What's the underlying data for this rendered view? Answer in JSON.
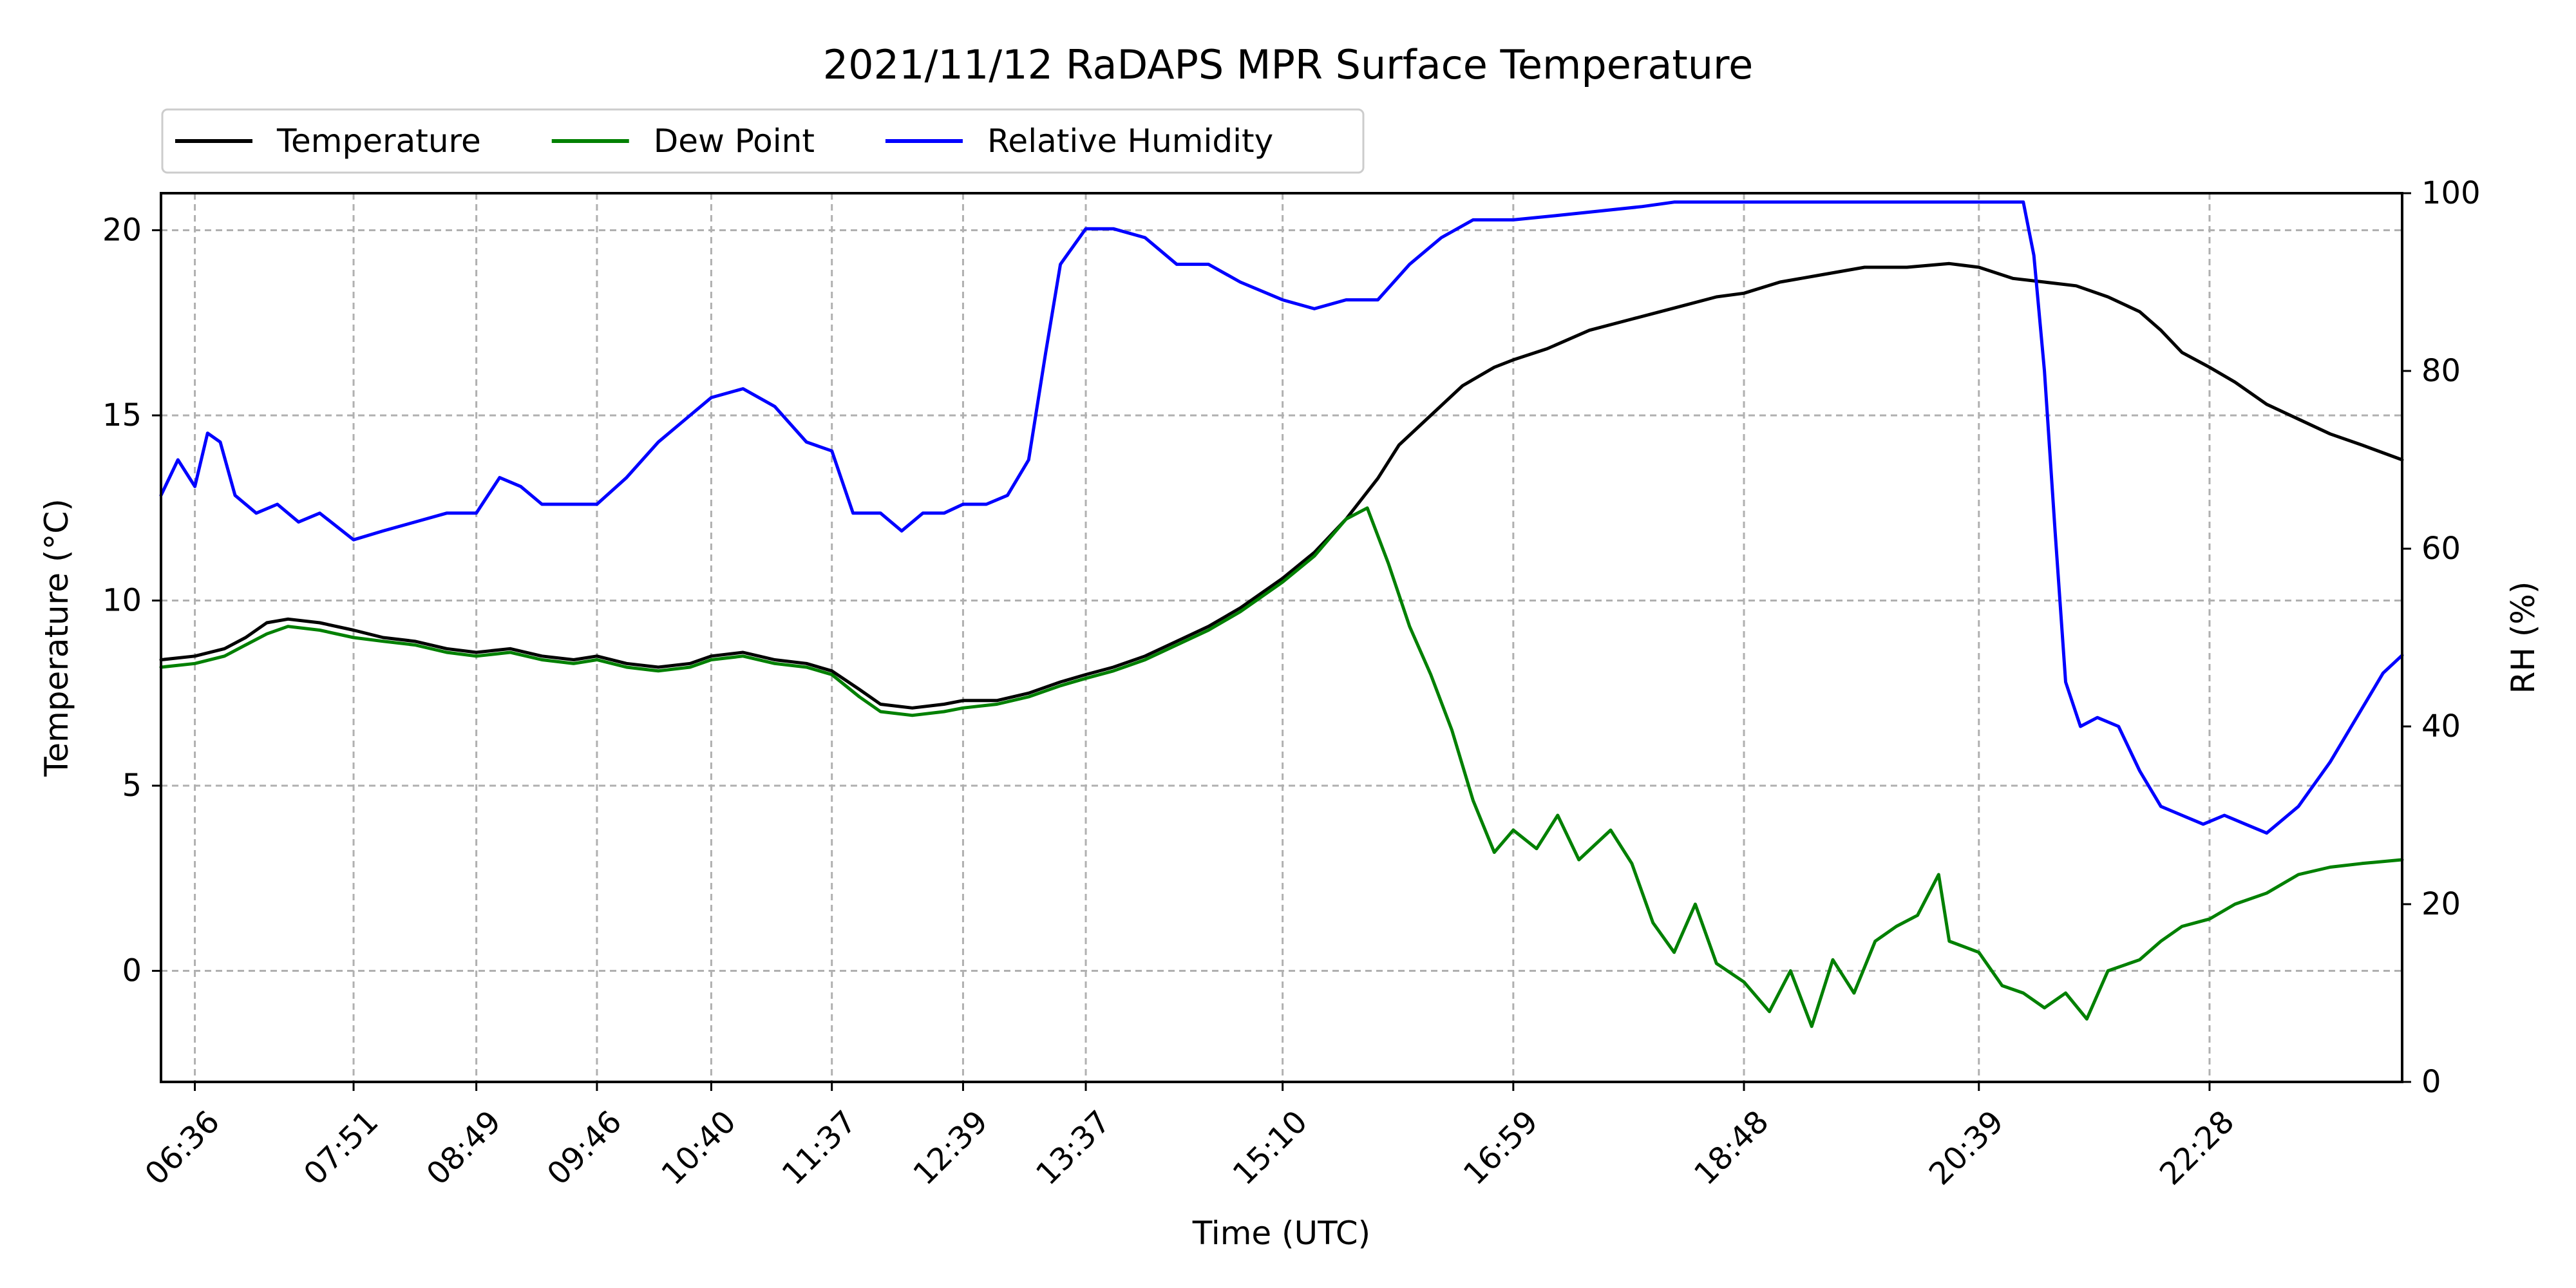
{
  "chart_data": {
    "type": "line",
    "title": "2021/11/12 RaDAPS MPR Surface Temperature",
    "xlabel": "Time (UTC)",
    "ylabel_left": "Temperature ($^\\circ$C)",
    "ylabel_left_display": "Temperature (°C)",
    "ylabel_right": "RH (%)",
    "xlim": [
      "06:20",
      "23:59"
    ],
    "ylim_left": [
      -3,
      21
    ],
    "ylim_right": [
      0,
      100
    ],
    "grid": true,
    "legend_position": "top-left, above plot",
    "x_ticks": [
      "06:36",
      "07:51",
      "08:49",
      "09:46",
      "10:40",
      "11:37",
      "12:39",
      "13:37",
      "15:10",
      "16:59",
      "18:48",
      "20:39",
      "22:28"
    ],
    "y_ticks_left": [
      0,
      5,
      10,
      15,
      20
    ],
    "y_ticks_right": [
      0,
      20,
      40,
      60,
      80,
      100
    ],
    "series": [
      {
        "name": "Temperature",
        "axis": "left",
        "color": "#000000",
        "points": [
          [
            "06:20",
            8.4
          ],
          [
            "06:36",
            8.5
          ],
          [
            "06:50",
            8.7
          ],
          [
            "07:00",
            9.0
          ],
          [
            "07:10",
            9.4
          ],
          [
            "07:20",
            9.5
          ],
          [
            "07:35",
            9.4
          ],
          [
            "07:51",
            9.2
          ],
          [
            "08:05",
            9.0
          ],
          [
            "08:20",
            8.9
          ],
          [
            "08:35",
            8.7
          ],
          [
            "08:49",
            8.6
          ],
          [
            "09:05",
            8.7
          ],
          [
            "09:20",
            8.5
          ],
          [
            "09:35",
            8.4
          ],
          [
            "09:46",
            8.5
          ],
          [
            "10:00",
            8.3
          ],
          [
            "10:15",
            8.2
          ],
          [
            "10:30",
            8.3
          ],
          [
            "10:40",
            8.5
          ],
          [
            "10:55",
            8.6
          ],
          [
            "11:10",
            8.4
          ],
          [
            "11:25",
            8.3
          ],
          [
            "11:37",
            8.1
          ],
          [
            "11:50",
            7.6
          ],
          [
            "12:00",
            7.2
          ],
          [
            "12:15",
            7.1
          ],
          [
            "12:30",
            7.2
          ],
          [
            "12:39",
            7.3
          ],
          [
            "12:55",
            7.3
          ],
          [
            "13:10",
            7.5
          ],
          [
            "13:25",
            7.8
          ],
          [
            "13:37",
            8.0
          ],
          [
            "13:50",
            8.2
          ],
          [
            "14:05",
            8.5
          ],
          [
            "14:20",
            8.9
          ],
          [
            "14:35",
            9.3
          ],
          [
            "14:50",
            9.8
          ],
          [
            "15:10",
            10.6
          ],
          [
            "15:25",
            11.3
          ],
          [
            "15:40",
            12.2
          ],
          [
            "15:55",
            13.3
          ],
          [
            "16:05",
            14.2
          ],
          [
            "16:20",
            15.0
          ],
          [
            "16:35",
            15.8
          ],
          [
            "16:50",
            16.3
          ],
          [
            "16:59",
            16.5
          ],
          [
            "17:15",
            16.8
          ],
          [
            "17:35",
            17.3
          ],
          [
            "17:55",
            17.6
          ],
          [
            "18:15",
            17.9
          ],
          [
            "18:35",
            18.2
          ],
          [
            "18:48",
            18.3
          ],
          [
            "19:05",
            18.6
          ],
          [
            "19:25",
            18.8
          ],
          [
            "19:45",
            19.0
          ],
          [
            "20:05",
            19.0
          ],
          [
            "20:25",
            19.1
          ],
          [
            "20:39",
            19.0
          ],
          [
            "20:55",
            18.7
          ],
          [
            "21:10",
            18.6
          ],
          [
            "21:25",
            18.5
          ],
          [
            "21:40",
            18.2
          ],
          [
            "21:55",
            17.8
          ],
          [
            "22:05",
            17.3
          ],
          [
            "22:15",
            16.7
          ],
          [
            "22:28",
            16.3
          ],
          [
            "22:40",
            15.9
          ],
          [
            "22:55",
            15.3
          ],
          [
            "23:10",
            14.9
          ],
          [
            "23:25",
            14.5
          ],
          [
            "23:40",
            14.2
          ],
          [
            "23:59",
            13.8
          ]
        ]
      },
      {
        "name": "Dew Point",
        "axis": "left",
        "color": "#008000",
        "points": [
          [
            "06:20",
            8.2
          ],
          [
            "06:36",
            8.3
          ],
          [
            "06:50",
            8.5
          ],
          [
            "07:00",
            8.8
          ],
          [
            "07:10",
            9.1
          ],
          [
            "07:20",
            9.3
          ],
          [
            "07:35",
            9.2
          ],
          [
            "07:51",
            9.0
          ],
          [
            "08:05",
            8.9
          ],
          [
            "08:20",
            8.8
          ],
          [
            "08:35",
            8.6
          ],
          [
            "08:49",
            8.5
          ],
          [
            "09:05",
            8.6
          ],
          [
            "09:20",
            8.4
          ],
          [
            "09:35",
            8.3
          ],
          [
            "09:46",
            8.4
          ],
          [
            "10:00",
            8.2
          ],
          [
            "10:15",
            8.1
          ],
          [
            "10:30",
            8.2
          ],
          [
            "10:40",
            8.4
          ],
          [
            "10:55",
            8.5
          ],
          [
            "11:10",
            8.3
          ],
          [
            "11:25",
            8.2
          ],
          [
            "11:37",
            8.0
          ],
          [
            "11:50",
            7.4
          ],
          [
            "12:00",
            7.0
          ],
          [
            "12:15",
            6.9
          ],
          [
            "12:30",
            7.0
          ],
          [
            "12:39",
            7.1
          ],
          [
            "12:55",
            7.2
          ],
          [
            "13:10",
            7.4
          ],
          [
            "13:25",
            7.7
          ],
          [
            "13:37",
            7.9
          ],
          [
            "13:50",
            8.1
          ],
          [
            "14:05",
            8.4
          ],
          [
            "14:20",
            8.8
          ],
          [
            "14:35",
            9.2
          ],
          [
            "14:50",
            9.7
          ],
          [
            "15:10",
            10.5
          ],
          [
            "15:25",
            11.2
          ],
          [
            "15:40",
            12.2
          ],
          [
            "15:50",
            12.5
          ],
          [
            "16:00",
            11.0
          ],
          [
            "16:10",
            9.3
          ],
          [
            "16:20",
            8.0
          ],
          [
            "16:30",
            6.5
          ],
          [
            "16:40",
            4.6
          ],
          [
            "16:50",
            3.2
          ],
          [
            "16:59",
            3.8
          ],
          [
            "17:10",
            3.3
          ],
          [
            "17:20",
            4.2
          ],
          [
            "17:30",
            3.0
          ],
          [
            "17:45",
            3.8
          ],
          [
            "17:55",
            2.9
          ],
          [
            "18:05",
            1.3
          ],
          [
            "18:15",
            0.5
          ],
          [
            "18:25",
            1.8
          ],
          [
            "18:35",
            0.2
          ],
          [
            "18:48",
            -0.3
          ],
          [
            "19:00",
            -1.1
          ],
          [
            "19:10",
            0.0
          ],
          [
            "19:20",
            -1.5
          ],
          [
            "19:30",
            0.3
          ],
          [
            "19:40",
            -0.6
          ],
          [
            "19:50",
            0.8
          ],
          [
            "20:00",
            1.2
          ],
          [
            "20:10",
            1.5
          ],
          [
            "20:20",
            2.6
          ],
          [
            "20:25",
            0.8
          ],
          [
            "20:39",
            0.5
          ],
          [
            "20:50",
            -0.4
          ],
          [
            "21:00",
            -0.6
          ],
          [
            "21:10",
            -1.0
          ],
          [
            "21:20",
            -0.6
          ],
          [
            "21:30",
            -1.3
          ],
          [
            "21:40",
            0.0
          ],
          [
            "21:55",
            0.3
          ],
          [
            "22:05",
            0.8
          ],
          [
            "22:15",
            1.2
          ],
          [
            "22:28",
            1.4
          ],
          [
            "22:40",
            1.8
          ],
          [
            "22:55",
            2.1
          ],
          [
            "23:10",
            2.6
          ],
          [
            "23:25",
            2.8
          ],
          [
            "23:40",
            2.9
          ],
          [
            "23:59",
            3.0
          ]
        ]
      },
      {
        "name": "Relative Humidity",
        "axis": "right",
        "color": "#0000ff",
        "points": [
          [
            "06:20",
            66
          ],
          [
            "06:28",
            70
          ],
          [
            "06:36",
            67
          ],
          [
            "06:42",
            73
          ],
          [
            "06:48",
            72
          ],
          [
            "06:55",
            66
          ],
          [
            "07:05",
            64
          ],
          [
            "07:15",
            65
          ],
          [
            "07:25",
            63
          ],
          [
            "07:35",
            64
          ],
          [
            "07:51",
            61
          ],
          [
            "08:05",
            62
          ],
          [
            "08:20",
            63
          ],
          [
            "08:35",
            64
          ],
          [
            "08:49",
            64
          ],
          [
            "09:00",
            68
          ],
          [
            "09:10",
            67
          ],
          [
            "09:20",
            65
          ],
          [
            "09:35",
            65
          ],
          [
            "09:46",
            65
          ],
          [
            "10:00",
            68
          ],
          [
            "10:15",
            72
          ],
          [
            "10:30",
            75
          ],
          [
            "10:40",
            77
          ],
          [
            "10:55",
            78
          ],
          [
            "11:10",
            76
          ],
          [
            "11:25",
            72
          ],
          [
            "11:37",
            71
          ],
          [
            "11:47",
            64
          ],
          [
            "12:00",
            64
          ],
          [
            "12:10",
            62
          ],
          [
            "12:20",
            64
          ],
          [
            "12:30",
            64
          ],
          [
            "12:39",
            65
          ],
          [
            "12:50",
            65
          ],
          [
            "13:00",
            66
          ],
          [
            "13:10",
            70
          ],
          [
            "13:18",
            82
          ],
          [
            "13:25",
            92
          ],
          [
            "13:37",
            96
          ],
          [
            "13:50",
            96
          ],
          [
            "14:05",
            95
          ],
          [
            "14:20",
            92
          ],
          [
            "14:35",
            92
          ],
          [
            "14:50",
            90
          ],
          [
            "15:10",
            88
          ],
          [
            "15:25",
            87
          ],
          [
            "15:40",
            88
          ],
          [
            "15:55",
            88
          ],
          [
            "16:10",
            92
          ],
          [
            "16:25",
            95
          ],
          [
            "16:40",
            97
          ],
          [
            "16:59",
            97
          ],
          [
            "17:20",
            97.5
          ],
          [
            "17:40",
            98
          ],
          [
            "18:00",
            98.5
          ],
          [
            "18:15",
            99
          ],
          [
            "18:48",
            99
          ],
          [
            "19:30",
            99
          ],
          [
            "20:00",
            99
          ],
          [
            "20:39",
            99
          ],
          [
            "21:00",
            99
          ],
          [
            "21:05",
            93
          ],
          [
            "21:10",
            80
          ],
          [
            "21:15",
            62
          ],
          [
            "21:20",
            45
          ],
          [
            "21:27",
            40
          ],
          [
            "21:35",
            41
          ],
          [
            "21:45",
            40
          ],
          [
            "21:55",
            35
          ],
          [
            "22:05",
            31
          ],
          [
            "22:15",
            30
          ],
          [
            "22:25",
            29
          ],
          [
            "22:35",
            30
          ],
          [
            "22:45",
            29
          ],
          [
            "22:55",
            28
          ],
          [
            "23:10",
            31
          ],
          [
            "23:25",
            36
          ],
          [
            "23:40",
            42
          ],
          [
            "23:50",
            46
          ],
          [
            "23:59",
            48
          ]
        ]
      }
    ]
  }
}
